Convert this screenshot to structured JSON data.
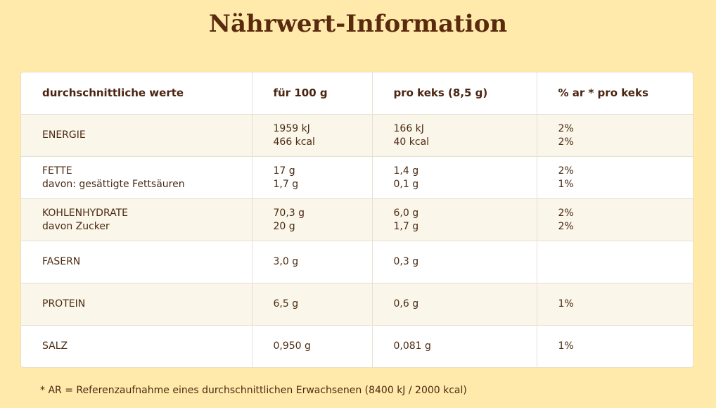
{
  "title": "Nährwert-Information",
  "table": {
    "header": [
      "durchschnittliche werte",
      "für 100 g",
      "pro keks (8,5 g)",
      "% ar * pro keks"
    ],
    "rows": [
      [
        [
          "ENERGIE"
        ],
        [
          "1959 kJ",
          "466 kcal"
        ],
        [
          "166 kJ",
          "40 kcal"
        ],
        [
          "2%",
          "2%"
        ]
      ],
      [
        [
          "FETTE",
          "davon: gesättigte Fettsäuren"
        ],
        [
          "17 g",
          "1,7 g"
        ],
        [
          "1,4 g",
          "0,1 g"
        ],
        [
          "2%",
          "1%"
        ]
      ],
      [
        [
          "KOHLENHYDRATE",
          "davon Zucker"
        ],
        [
          "70,3 g",
          "20 g"
        ],
        [
          "6,0 g",
          "1,7 g"
        ],
        [
          "2%",
          "2%"
        ]
      ],
      [
        [
          "FASERN"
        ],
        [
          "3,0 g"
        ],
        [
          "0,3 g"
        ],
        []
      ],
      [
        [
          "PROTEIN"
        ],
        [
          "6,5 g"
        ],
        [
          "0,6 g"
        ],
        [
          "1%"
        ]
      ],
      [
        [
          "SALZ"
        ],
        [
          "0,950 g"
        ],
        [
          "0,081 g"
        ],
        [
          "1%"
        ]
      ]
    ]
  },
  "footnote": "* AR = Referenzaufnahme eines durchschnittlichen Erwachsenen (8400 kJ / 2000 kcal)"
}
